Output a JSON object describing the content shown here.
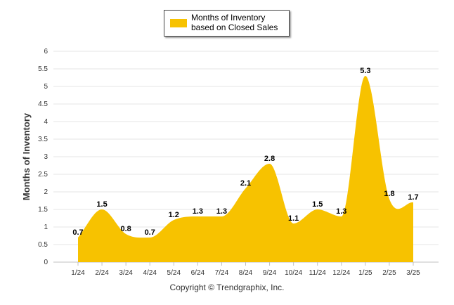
{
  "chart_data": {
    "type": "area",
    "categories": [
      "1/24",
      "2/24",
      "3/24",
      "4/24",
      "5/24",
      "6/24",
      "7/24",
      "8/24",
      "9/24",
      "10/24",
      "11/24",
      "12/24",
      "1/25",
      "2/25",
      "3/25"
    ],
    "series": [
      {
        "name": "Months of Inventory based on Closed Sales",
        "values": [
          0.7,
          1.5,
          0.8,
          0.7,
          1.2,
          1.3,
          1.3,
          2.1,
          2.8,
          1.1,
          1.5,
          1.3,
          5.3,
          1.8,
          1.7
        ],
        "color": "#f7c200"
      }
    ],
    "data_labels": [
      "0.7",
      "1.5",
      "0.8",
      "0.7",
      "1.2",
      "1.3",
      "1.3",
      "2.1",
      "2.8",
      "1.1",
      "1.5",
      "1.3",
      "5.3",
      "1.8",
      "1.7"
    ],
    "ylabel": "Months of Inventory",
    "ylim": [
      0,
      6
    ],
    "yticks": [
      0,
      0.5,
      1,
      1.5,
      2,
      2.5,
      3,
      3.5,
      4,
      4.5,
      5,
      5.5,
      6
    ],
    "ytick_labels": [
      "0",
      "0.5",
      "1",
      "1.5",
      "2",
      "2.5",
      "3",
      "3.5",
      "4",
      "4.5",
      "5",
      "5.5",
      "6"
    ],
    "grid": true,
    "legend_position": "top-center"
  },
  "legend": {
    "label": "Months of Inventory based on Closed Sales",
    "color": "#f7c200"
  },
  "footer": {
    "copyright": "Copyright © Trendgraphix, Inc."
  }
}
